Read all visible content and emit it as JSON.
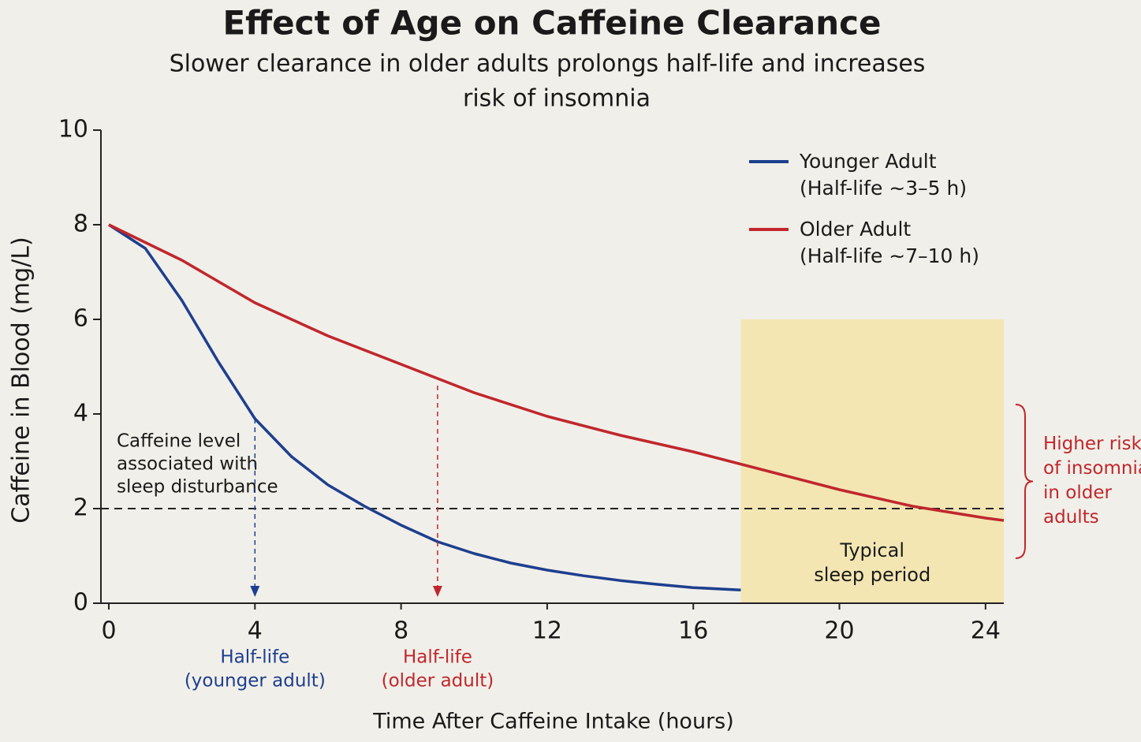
{
  "chart_data": {
    "type": "line",
    "title": "Effect of Age on Caffeine Clearance",
    "subtitle": [
      "Slower clearance in older adults prolongs half-life and increases",
      "risk of insomnia"
    ],
    "x_label": "Time After Caffeine Intake (hours)",
    "y_label": "Caffeine in Blood (mg/L)",
    "xlim": [
      0,
      24.5
    ],
    "xticks": [
      0,
      4,
      8,
      12,
      16,
      20,
      24
    ],
    "ylim": [
      0,
      10
    ],
    "yticks": [
      0,
      2,
      4,
      6,
      8,
      10
    ],
    "grid": false,
    "legend": "top-right",
    "series": [
      {
        "name": "Younger Adult",
        "note": "(Half-life ~3–5 h)",
        "color": "#1d3f8f",
        "x": [
          0,
          1,
          2,
          3,
          4,
          5,
          6,
          7,
          8,
          9,
          10,
          11,
          12,
          13,
          14,
          15,
          16,
          17.3
        ],
        "values": [
          8,
          7.5,
          6.4,
          5.1,
          3.9,
          3.1,
          2.5,
          2.05,
          1.65,
          1.3,
          1.05,
          0.85,
          0.7,
          0.58,
          0.48,
          0.4,
          0.33,
          0.28
        ]
      },
      {
        "name": "Older Adult",
        "note": "(Half-life ~7–10 h)",
        "color": "#c0272d",
        "x": [
          0,
          2,
          4,
          6,
          8,
          10,
          12,
          14,
          16,
          18,
          20,
          22,
          24,
          24.5
        ],
        "values": [
          8,
          7.25,
          6.35,
          5.65,
          5.05,
          4.45,
          3.95,
          3.55,
          3.2,
          2.8,
          2.4,
          2.05,
          1.8,
          1.75
        ]
      }
    ],
    "threshold": {
      "value": 2,
      "label_lines": [
        "Caffeine level",
        "associated with",
        "sleep disturbance"
      ]
    },
    "half_life_markers": [
      {
        "x": 4,
        "from": 3.9,
        "color": "#1d3f8f",
        "label_lines": [
          "Half-life",
          "(younger adult)"
        ]
      },
      {
        "x": 9,
        "from": 4.6,
        "color": "#c0272d",
        "label_lines": [
          "Half-life",
          "(older adult)"
        ]
      }
    ],
    "shaded_region": {
      "x": [
        17.3,
        24.5
      ],
      "y": [
        0,
        6
      ],
      "color": "#f3e6b3",
      "label_lines": [
        "Typical",
        "sleep period"
      ]
    },
    "brace": {
      "y": [
        0.95,
        4.2
      ],
      "color": "#c0272d",
      "label_lines": [
        "Higher risk",
        "of insomnia",
        "in older",
        "adults"
      ]
    }
  }
}
